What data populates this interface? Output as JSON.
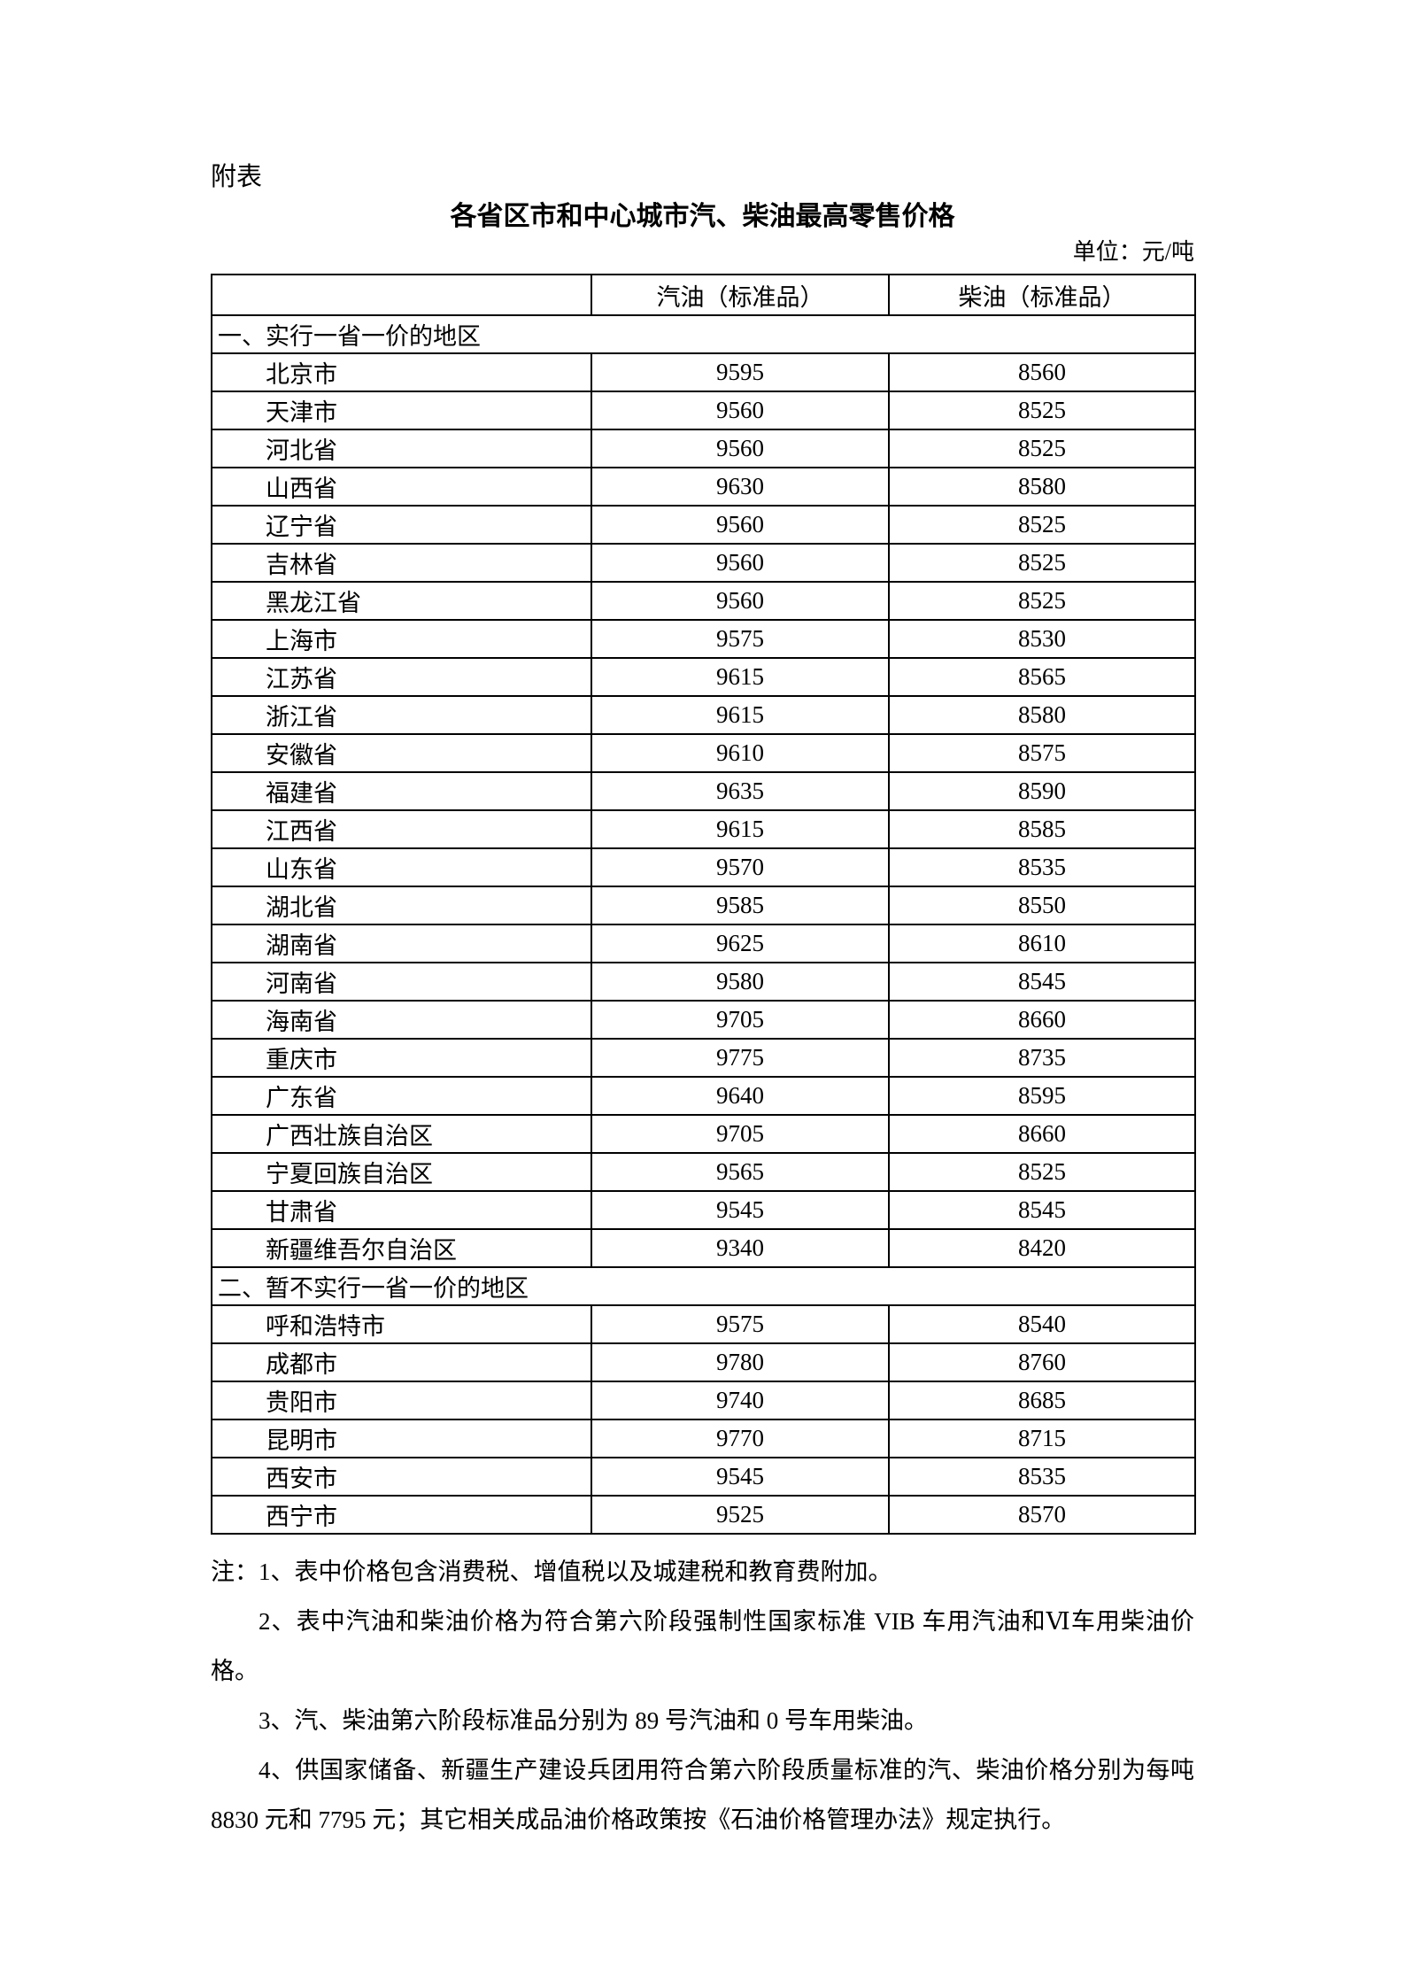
{
  "page": {
    "appendix_label": "附表",
    "title": "各省区市和中心城市汽、柴油最高零售价格",
    "unit_label": "单位：元/吨"
  },
  "table": {
    "columns": [
      "",
      "汽油（标准品）",
      "柴油（标准品）"
    ],
    "sections": [
      {
        "header": "一、实行一省一价的地区",
        "rows": [
          {
            "region": "北京市",
            "gasoline": "9595",
            "diesel": "8560"
          },
          {
            "region": "天津市",
            "gasoline": "9560",
            "diesel": "8525"
          },
          {
            "region": "河北省",
            "gasoline": "9560",
            "diesel": "8525"
          },
          {
            "region": "山西省",
            "gasoline": "9630",
            "diesel": "8580"
          },
          {
            "region": "辽宁省",
            "gasoline": "9560",
            "diesel": "8525"
          },
          {
            "region": "吉林省",
            "gasoline": "9560",
            "diesel": "8525"
          },
          {
            "region": "黑龙江省",
            "gasoline": "9560",
            "diesel": "8525"
          },
          {
            "region": "上海市",
            "gasoline": "9575",
            "diesel": "8530"
          },
          {
            "region": "江苏省",
            "gasoline": "9615",
            "diesel": "8565"
          },
          {
            "region": "浙江省",
            "gasoline": "9615",
            "diesel": "8580"
          },
          {
            "region": "安徽省",
            "gasoline": "9610",
            "diesel": "8575"
          },
          {
            "region": "福建省",
            "gasoline": "9635",
            "diesel": "8590"
          },
          {
            "region": "江西省",
            "gasoline": "9615",
            "diesel": "8585"
          },
          {
            "region": "山东省",
            "gasoline": "9570",
            "diesel": "8535"
          },
          {
            "region": "湖北省",
            "gasoline": "9585",
            "diesel": "8550"
          },
          {
            "region": "湖南省",
            "gasoline": "9625",
            "diesel": "8610"
          },
          {
            "region": "河南省",
            "gasoline": "9580",
            "diesel": "8545"
          },
          {
            "region": "海南省",
            "gasoline": "9705",
            "diesel": "8660"
          },
          {
            "region": "重庆市",
            "gasoline": "9775",
            "diesel": "8735"
          },
          {
            "region": "广东省",
            "gasoline": "9640",
            "diesel": "8595"
          },
          {
            "region": "广西壮族自治区",
            "gasoline": "9705",
            "diesel": "8660"
          },
          {
            "region": "宁夏回族自治区",
            "gasoline": "9565",
            "diesel": "8525"
          },
          {
            "region": "甘肃省",
            "gasoline": "9545",
            "diesel": "8545"
          },
          {
            "region": "新疆维吾尔自治区",
            "gasoline": "9340",
            "diesel": "8420"
          }
        ]
      },
      {
        "header": "二、暂不实行一省一价的地区",
        "rows": [
          {
            "region": "呼和浩特市",
            "gasoline": "9575",
            "diesel": "8540"
          },
          {
            "region": "成都市",
            "gasoline": "9780",
            "diesel": "8760"
          },
          {
            "region": "贵阳市",
            "gasoline": "9740",
            "diesel": "8685"
          },
          {
            "region": "昆明市",
            "gasoline": "9770",
            "diesel": "8715"
          },
          {
            "region": "西安市",
            "gasoline": "9545",
            "diesel": "8535"
          },
          {
            "region": "西宁市",
            "gasoline": "9525",
            "diesel": "8570"
          }
        ]
      }
    ]
  },
  "notes": [
    {
      "text": "注：1、表中价格包含消费税、增值税以及城建税和教育费附加。",
      "indent": false
    },
    {
      "text": "2、表中汽油和柴油价格为符合第六阶段强制性国家标准 VIB 车用汽油和Ⅵ车用柴油价格。",
      "indent": true
    },
    {
      "text": "3、汽、柴油第六阶段标准品分别为 89 号汽油和 0 号车用柴油。",
      "indent": true
    },
    {
      "text": "4、供国家储备、新疆生产建设兵团用符合第六阶段质量标准的汽、柴油价格分别为每吨 8830 元和 7795 元；其它相关成品油价格政策按《石油价格管理办法》规定执行。",
      "indent": true
    }
  ]
}
